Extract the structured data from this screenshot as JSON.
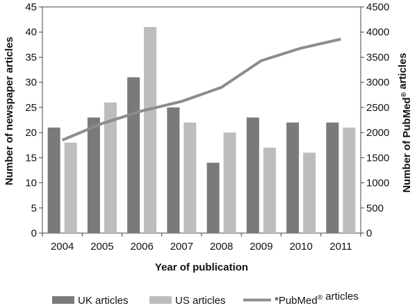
{
  "chart_data": {
    "type": "bar",
    "categories": [
      "2004",
      "2005",
      "2006",
      "2007",
      "2008",
      "2009",
      "2010",
      "2011"
    ],
    "series": [
      {
        "name": "UK articles",
        "type": "bar",
        "axis": "left",
        "color": "#7a7a7a",
        "values": [
          21,
          23,
          31,
          25,
          14,
          23,
          22,
          22
        ]
      },
      {
        "name": "US articles",
        "type": "bar",
        "axis": "left",
        "color": "#bdbdbd",
        "values": [
          18,
          26,
          41,
          22,
          20,
          17,
          16,
          21
        ]
      },
      {
        "name": "*PubMed® articles",
        "type": "line",
        "axis": "right",
        "color": "#8c8c8c",
        "values": [
          1850,
          2180,
          2430,
          2620,
          2900,
          3430,
          3680,
          3860
        ]
      }
    ],
    "xlabel": "Year of publication",
    "ylabel": "Number of newspaper articles",
    "y2label": "Number of PubMed® articles",
    "ylim": [
      0,
      45
    ],
    "y2lim": [
      0,
      4500
    ],
    "yticks": [
      "0",
      "5",
      "10",
      "15",
      "20",
      "25",
      "30",
      "35",
      "40",
      "45"
    ],
    "y2ticks": [
      "0",
      "500",
      "1000",
      "1500",
      "2000",
      "2500",
      "3000",
      "3500",
      "4000",
      "4500"
    ],
    "grid": false,
    "legend_position": "bottom"
  }
}
